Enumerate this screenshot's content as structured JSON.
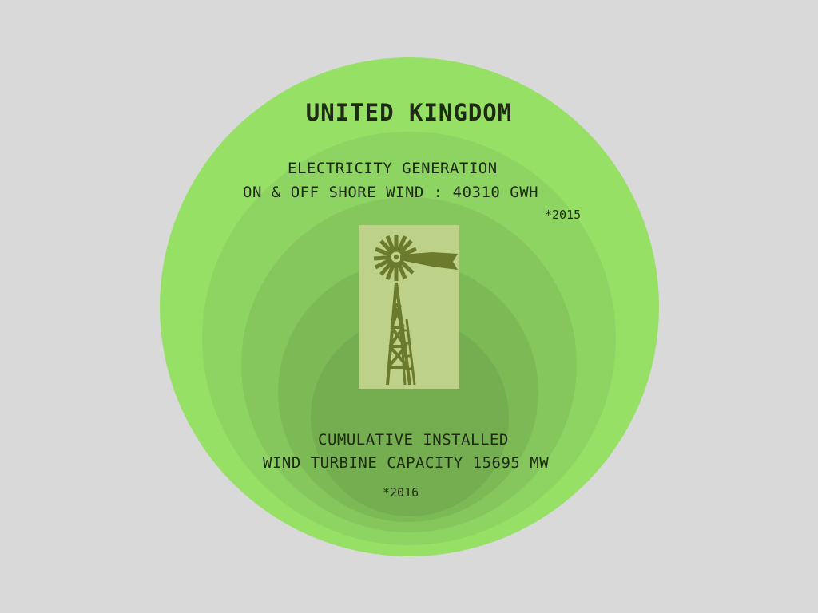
{
  "country": "UNITED KINGDOM",
  "generation": {
    "line1": "ELECTRICITY GENERATION",
    "line2": "ON & OFF SHORE WIND : 40310 GWh",
    "year_note": "*2015"
  },
  "capacity": {
    "line1": "CUMULATIVE INSTALLED",
    "line2": "WIND TURBINE CAPACITY 15695 MW",
    "year_note": "*2016"
  },
  "icon": "windmill-icon",
  "colors": {
    "background": "#d9d9d9",
    "circle_outer": "#96e066",
    "circle_inner": "#75ae51",
    "windmill": "#6b7a2c",
    "picture_bg": "#bdd288"
  }
}
